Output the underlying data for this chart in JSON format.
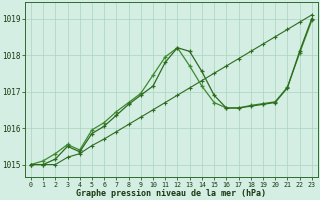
{
  "xlabel": "Graphe pression niveau de la mer (hPa)",
  "background_color": "#d4eee4",
  "grid_color": "#aad4be",
  "ylim": [
    1014.65,
    1019.45
  ],
  "yticks": [
    1015,
    1016,
    1017,
    1018,
    1019
  ],
  "xlim": [
    -0.5,
    23.5
  ],
  "x_labels": [
    "0",
    "1",
    "2",
    "3",
    "4",
    "5",
    "6",
    "7",
    "8",
    "9",
    "10",
    "11",
    "12",
    "13",
    "14",
    "15",
    "16",
    "17",
    "18",
    "19",
    "20",
    "21",
    "22",
    "23"
  ],
  "series1_y": [
    1015.0,
    1015.0,
    1015.15,
    1015.5,
    1015.35,
    1015.85,
    1016.05,
    1016.35,
    1016.65,
    1016.9,
    1017.15,
    1017.8,
    1018.2,
    1018.1,
    1017.55,
    1016.9,
    1016.55,
    1016.55,
    1016.6,
    1016.65,
    1016.7,
    1017.1,
    1018.1,
    1019.0
  ],
  "series2_y": [
    1015.0,
    1015.1,
    1015.3,
    1015.55,
    1015.4,
    1015.95,
    1016.15,
    1016.45,
    1016.7,
    1016.95,
    1017.45,
    1017.95,
    1018.2,
    1017.7,
    1017.15,
    1016.7,
    1016.55,
    1016.55,
    1016.62,
    1016.67,
    1016.72,
    1017.12,
    1018.05,
    1018.95
  ],
  "series3_y": [
    1015.0,
    1015.0,
    1015.0,
    1015.2,
    1015.3,
    1015.52,
    1015.7,
    1015.9,
    1016.1,
    1016.3,
    1016.5,
    1016.7,
    1016.9,
    1017.1,
    1017.3,
    1017.5,
    1017.7,
    1017.9,
    1018.1,
    1018.3,
    1018.5,
    1018.7,
    1018.9,
    1019.1
  ],
  "line_color_1": "#2d6b1e",
  "line_color_2": "#3d8a2e",
  "line_color_3": "#2d6b1e",
  "marker": "+",
  "markersize": 3.5,
  "linewidth": 0.9
}
